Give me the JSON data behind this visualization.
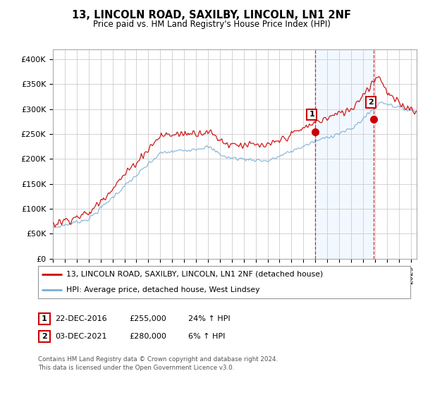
{
  "title": "13, LINCOLN ROAD, SAXILBY, LINCOLN, LN1 2NF",
  "subtitle": "Price paid vs. HM Land Registry's House Price Index (HPI)",
  "ylabel_ticks": [
    "£0",
    "£50K",
    "£100K",
    "£150K",
    "£200K",
    "£250K",
    "£300K",
    "£350K",
    "£400K"
  ],
  "ytick_values": [
    0,
    50000,
    100000,
    150000,
    200000,
    250000,
    300000,
    350000,
    400000
  ],
  "ylim": [
    0,
    420000
  ],
  "xlim_start": 1995.0,
  "xlim_end": 2025.5,
  "red_color": "#cc0000",
  "blue_color": "#7aaed6",
  "marker1_date": 2016.97,
  "marker2_date": 2021.92,
  "marker1_price": 255000,
  "marker2_price": 280000,
  "legend_label_red": "13, LINCOLN ROAD, SAXILBY, LINCOLN, LN1 2NF (detached house)",
  "legend_label_blue": "HPI: Average price, detached house, West Lindsey",
  "table_row1": [
    "1",
    "22-DEC-2016",
    "£255,000",
    "24% ↑ HPI"
  ],
  "table_row2": [
    "2",
    "03-DEC-2021",
    "£280,000",
    "6% ↑ HPI"
  ],
  "footer1": "Contains HM Land Registry data © Crown copyright and database right 2024.",
  "footer2": "This data is licensed under the Open Government Licence v3.0.",
  "background_color": "#ffffff",
  "grid_color": "#cccccc",
  "shade_color": "#ddeeff"
}
